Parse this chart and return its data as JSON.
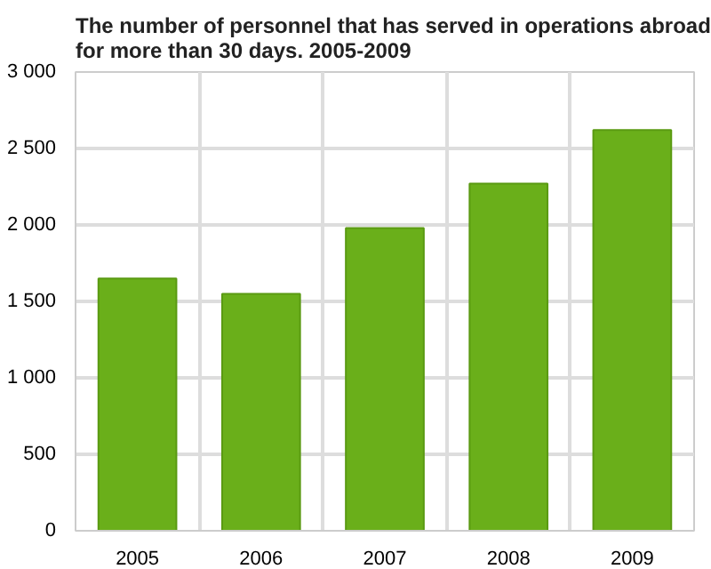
{
  "chart_data": {
    "type": "bar",
    "title": "The number of personnel that has served in operations abroad for more than 30 days. 2005-2009",
    "categories": [
      "2005",
      "2006",
      "2007",
      "2008",
      "2009"
    ],
    "values": [
      1650,
      1550,
      1980,
      2270,
      2620
    ],
    "color": "#6aaf1a",
    "ylim": [
      0,
      3000
    ],
    "yticks": [
      {
        "value": 0,
        "label": "0"
      },
      {
        "value": 500,
        "label": "500"
      },
      {
        "value": 1000,
        "label": "1 000"
      },
      {
        "value": 1500,
        "label": "1 500"
      },
      {
        "value": 2000,
        "label": "2 000"
      },
      {
        "value": 2500,
        "label": "2 500"
      },
      {
        "value": 3000,
        "label": "3 000"
      }
    ],
    "grid": true
  }
}
